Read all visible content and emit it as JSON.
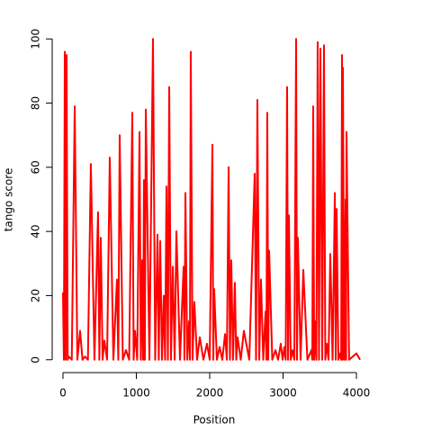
{
  "chart_data": {
    "type": "line",
    "xlabel": "Position",
    "ylabel": "tango score",
    "xlim": [
      -147,
      4147
    ],
    "ylim": [
      -4,
      104
    ],
    "xticks": [
      0,
      1000,
      2000,
      3000,
      4000
    ],
    "yticks": [
      0,
      20,
      40,
      60,
      80,
      100
    ],
    "x": [
      0,
      12,
      25,
      37,
      49,
      64,
      80,
      120,
      160,
      196,
      233,
      266,
      300,
      340,
      380,
      429,
      478,
      496,
      515,
      540,
      564,
      601,
      638,
      687,
      736,
      754,
      773,
      816,
      859,
      902,
      945,
      963,
      982,
      1012,
      1043,
      1061,
      1080,
      1092,
      1104,
      1116,
      1129,
      1178,
      1227,
      1257,
      1288,
      1306,
      1325,
      1350,
      1374,
      1392,
      1411,
      1430,
      1448,
      1472,
      1497,
      1522,
      1546,
      1595,
      1644,
      1656,
      1669,
      1694,
      1718,
      1730,
      1742,
      1766,
      1791,
      1828,
      1865,
      1914,
      1963,
      2000,
      2037,
      2049,
      2061,
      2098,
      2135,
      2172,
      2209,
      2234,
      2258,
      2276,
      2294,
      2318,
      2343,
      2362,
      2380,
      2423,
      2466,
      2540,
      2613,
      2632,
      2650,
      2675,
      2699,
      2730,
      2761,
      2773,
      2785,
      2798,
      2810,
      2853,
      2896,
      2932,
      2969,
      2994,
      3018,
      3036,
      3055,
      3068,
      3080,
      3104,
      3129,
      3154,
      3178,
      3190,
      3202,
      3239,
      3276,
      3332,
      3387,
      3399,
      3411,
      3424,
      3436,
      3454,
      3472,
      3490,
      3509,
      3534,
      3558,
      3576,
      3595,
      3620,
      3644,
      3675,
      3706,
      3718,
      3730,
      3754,
      3779,
      3792,
      3804,
      3810,
      3816,
      3834,
      3853,
      3859,
      3865,
      3900,
      4000,
      4050
    ],
    "series": [
      {
        "color": "#ff0000",
        "values": [
          21,
          0,
          96,
          0,
          95,
          0,
          1,
          0,
          79,
          0,
          9,
          0,
          1,
          0,
          61,
          0,
          46,
          0,
          38,
          0,
          6,
          0,
          63,
          0,
          25,
          0,
          70,
          0,
          3,
          0,
          77,
          0,
          9,
          0,
          71,
          0,
          31,
          0,
          56,
          0,
          78,
          0,
          100,
          0,
          39,
          0,
          37,
          0,
          20,
          0,
          54,
          0,
          85,
          0,
          29,
          0,
          40,
          0,
          29,
          0,
          52,
          0,
          12,
          0,
          96,
          0,
          18,
          0,
          7,
          0,
          5,
          0,
          67,
          0,
          22,
          0,
          4,
          0,
          8,
          0,
          60,
          0,
          31,
          0,
          24,
          0,
          7,
          0,
          9,
          0,
          58,
          0,
          81,
          0,
          25,
          0,
          15,
          0,
          77,
          0,
          34,
          0,
          3,
          0,
          5,
          0,
          4,
          0,
          85,
          0,
          45,
          0,
          3,
          0,
          100,
          0,
          38,
          0,
          28,
          0,
          3,
          0,
          79,
          0,
          12,
          0,
          99,
          0,
          97,
          0,
          98,
          0,
          5,
          0,
          33,
          0,
          52,
          0,
          47,
          0,
          2,
          0,
          95,
          0,
          91,
          0,
          50,
          0,
          71,
          0,
          2,
          0
        ]
      }
    ]
  }
}
